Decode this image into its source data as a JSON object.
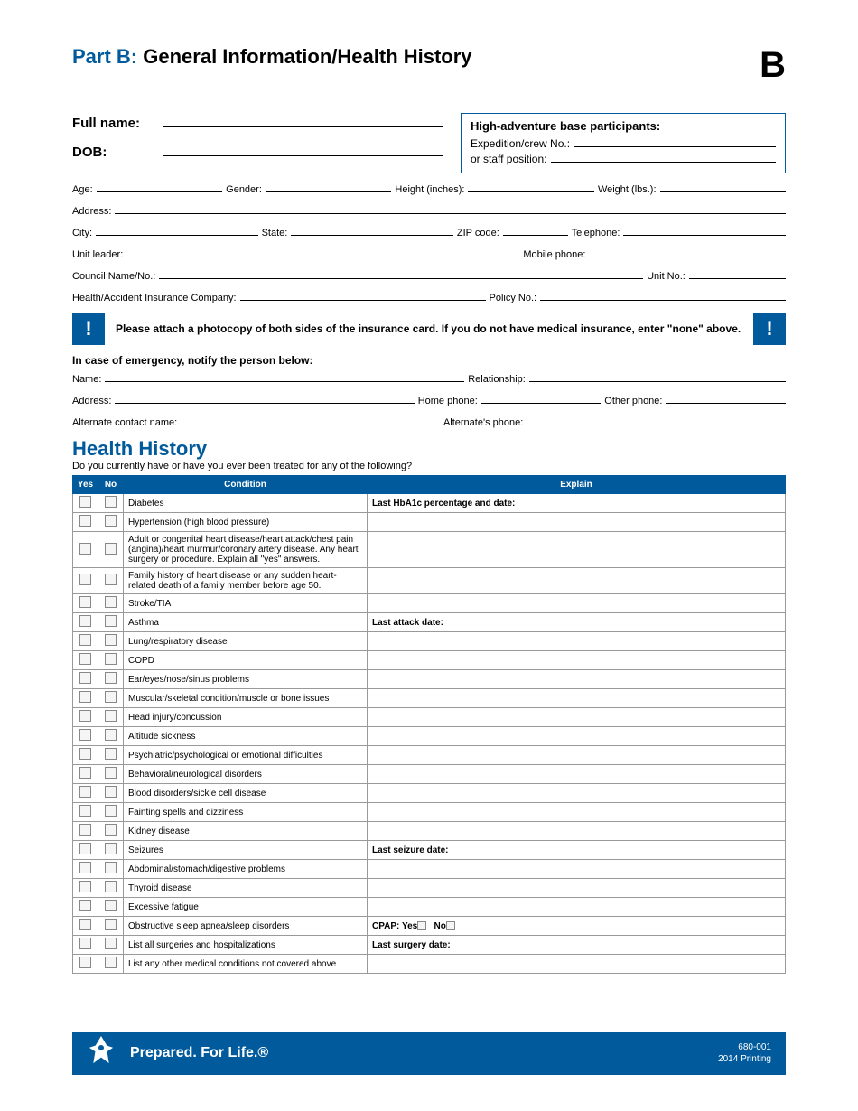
{
  "header": {
    "part_label": "Part B:",
    "title": "General Information/Health History",
    "letter": "B"
  },
  "top": {
    "full_name_label": "Full name:",
    "dob_label": "DOB:",
    "hab_title": "High-adventure base participants:",
    "hab_exp_label": "Expedition/crew No.:",
    "hab_staff_label": "or staff position:"
  },
  "fields": {
    "age": "Age:",
    "gender": "Gender:",
    "height": "Height (inches):",
    "weight": "Weight (lbs.):",
    "address": "Address:",
    "city": "City:",
    "state": "State:",
    "zip": "ZIP code:",
    "telephone": "Telephone:",
    "unit_leader": "Unit leader:",
    "mobile": "Mobile phone:",
    "council": "Council Name/No.:",
    "unit_no": "Unit No.:",
    "ins_co": "Health/Accident Insurance Company:",
    "policy": "Policy No.:"
  },
  "alert": {
    "mark": "!",
    "text": "Please attach a photocopy of both sides of the insurance card. If you do not have medical insurance, enter \"none\" above."
  },
  "emergency": {
    "title": "In case of emergency, notify the person below:",
    "name": "Name:",
    "relationship": "Relationship:",
    "address": "Address:",
    "home_phone": "Home phone:",
    "other_phone": "Other phone:",
    "alt_contact": "Alternate contact name:",
    "alt_phone": "Alternate's phone:"
  },
  "health_history": {
    "title": "Health History",
    "sub": "Do you currently have or have you ever been treated for any of the following?",
    "headers": {
      "yes": "Yes",
      "no": "No",
      "condition": "Condition",
      "explain": "Explain"
    },
    "rows": [
      {
        "condition": "Diabetes",
        "explain": "Last HbA1c percentage and date:"
      },
      {
        "condition": "Hypertension (high blood pressure)",
        "explain": ""
      },
      {
        "condition": "Adult or congenital heart disease/heart attack/chest pain (angina)/heart murmur/coronary artery disease. Any heart surgery or procedure. Explain all \"yes\" answers.",
        "explain": ""
      },
      {
        "condition": "Family history of heart disease or any sudden heart-related death of a family member before age 50.",
        "explain": ""
      },
      {
        "condition": "Stroke/TIA",
        "explain": ""
      },
      {
        "condition": "Asthma",
        "explain": "Last attack date:"
      },
      {
        "condition": "Lung/respiratory disease",
        "explain": ""
      },
      {
        "condition": "COPD",
        "explain": ""
      },
      {
        "condition": "Ear/eyes/nose/sinus problems",
        "explain": ""
      },
      {
        "condition": "Muscular/skeletal condition/muscle or bone issues",
        "explain": ""
      },
      {
        "condition": "Head injury/concussion",
        "explain": ""
      },
      {
        "condition": "Altitude sickness",
        "explain": ""
      },
      {
        "condition": "Psychiatric/psychological or emotional difficulties",
        "explain": ""
      },
      {
        "condition": "Behavioral/neurological disorders",
        "explain": ""
      },
      {
        "condition": "Blood disorders/sickle cell disease",
        "explain": ""
      },
      {
        "condition": "Fainting spells and dizziness",
        "explain": ""
      },
      {
        "condition": "Kidney disease",
        "explain": ""
      },
      {
        "condition": "Seizures",
        "explain": "Last seizure date:"
      },
      {
        "condition": "Abdominal/stomach/digestive problems",
        "explain": ""
      },
      {
        "condition": "Thyroid disease",
        "explain": ""
      },
      {
        "condition": "Excessive fatigue",
        "explain": ""
      },
      {
        "condition": "Obstructive sleep apnea/sleep disorders",
        "explain": "CPAP: Yes☐   No☐",
        "cpap": true
      },
      {
        "condition": "List all surgeries and hospitalizations",
        "explain": "Last surgery date:"
      },
      {
        "condition": "List any other medical conditions not covered above",
        "explain": ""
      }
    ]
  },
  "footer": {
    "slogan": "Prepared. For Life.®",
    "form_no": "680-001",
    "printing": "2014 Printing"
  },
  "colors": {
    "brand": "#005a9c",
    "border": "#999999",
    "text": "#000000"
  }
}
